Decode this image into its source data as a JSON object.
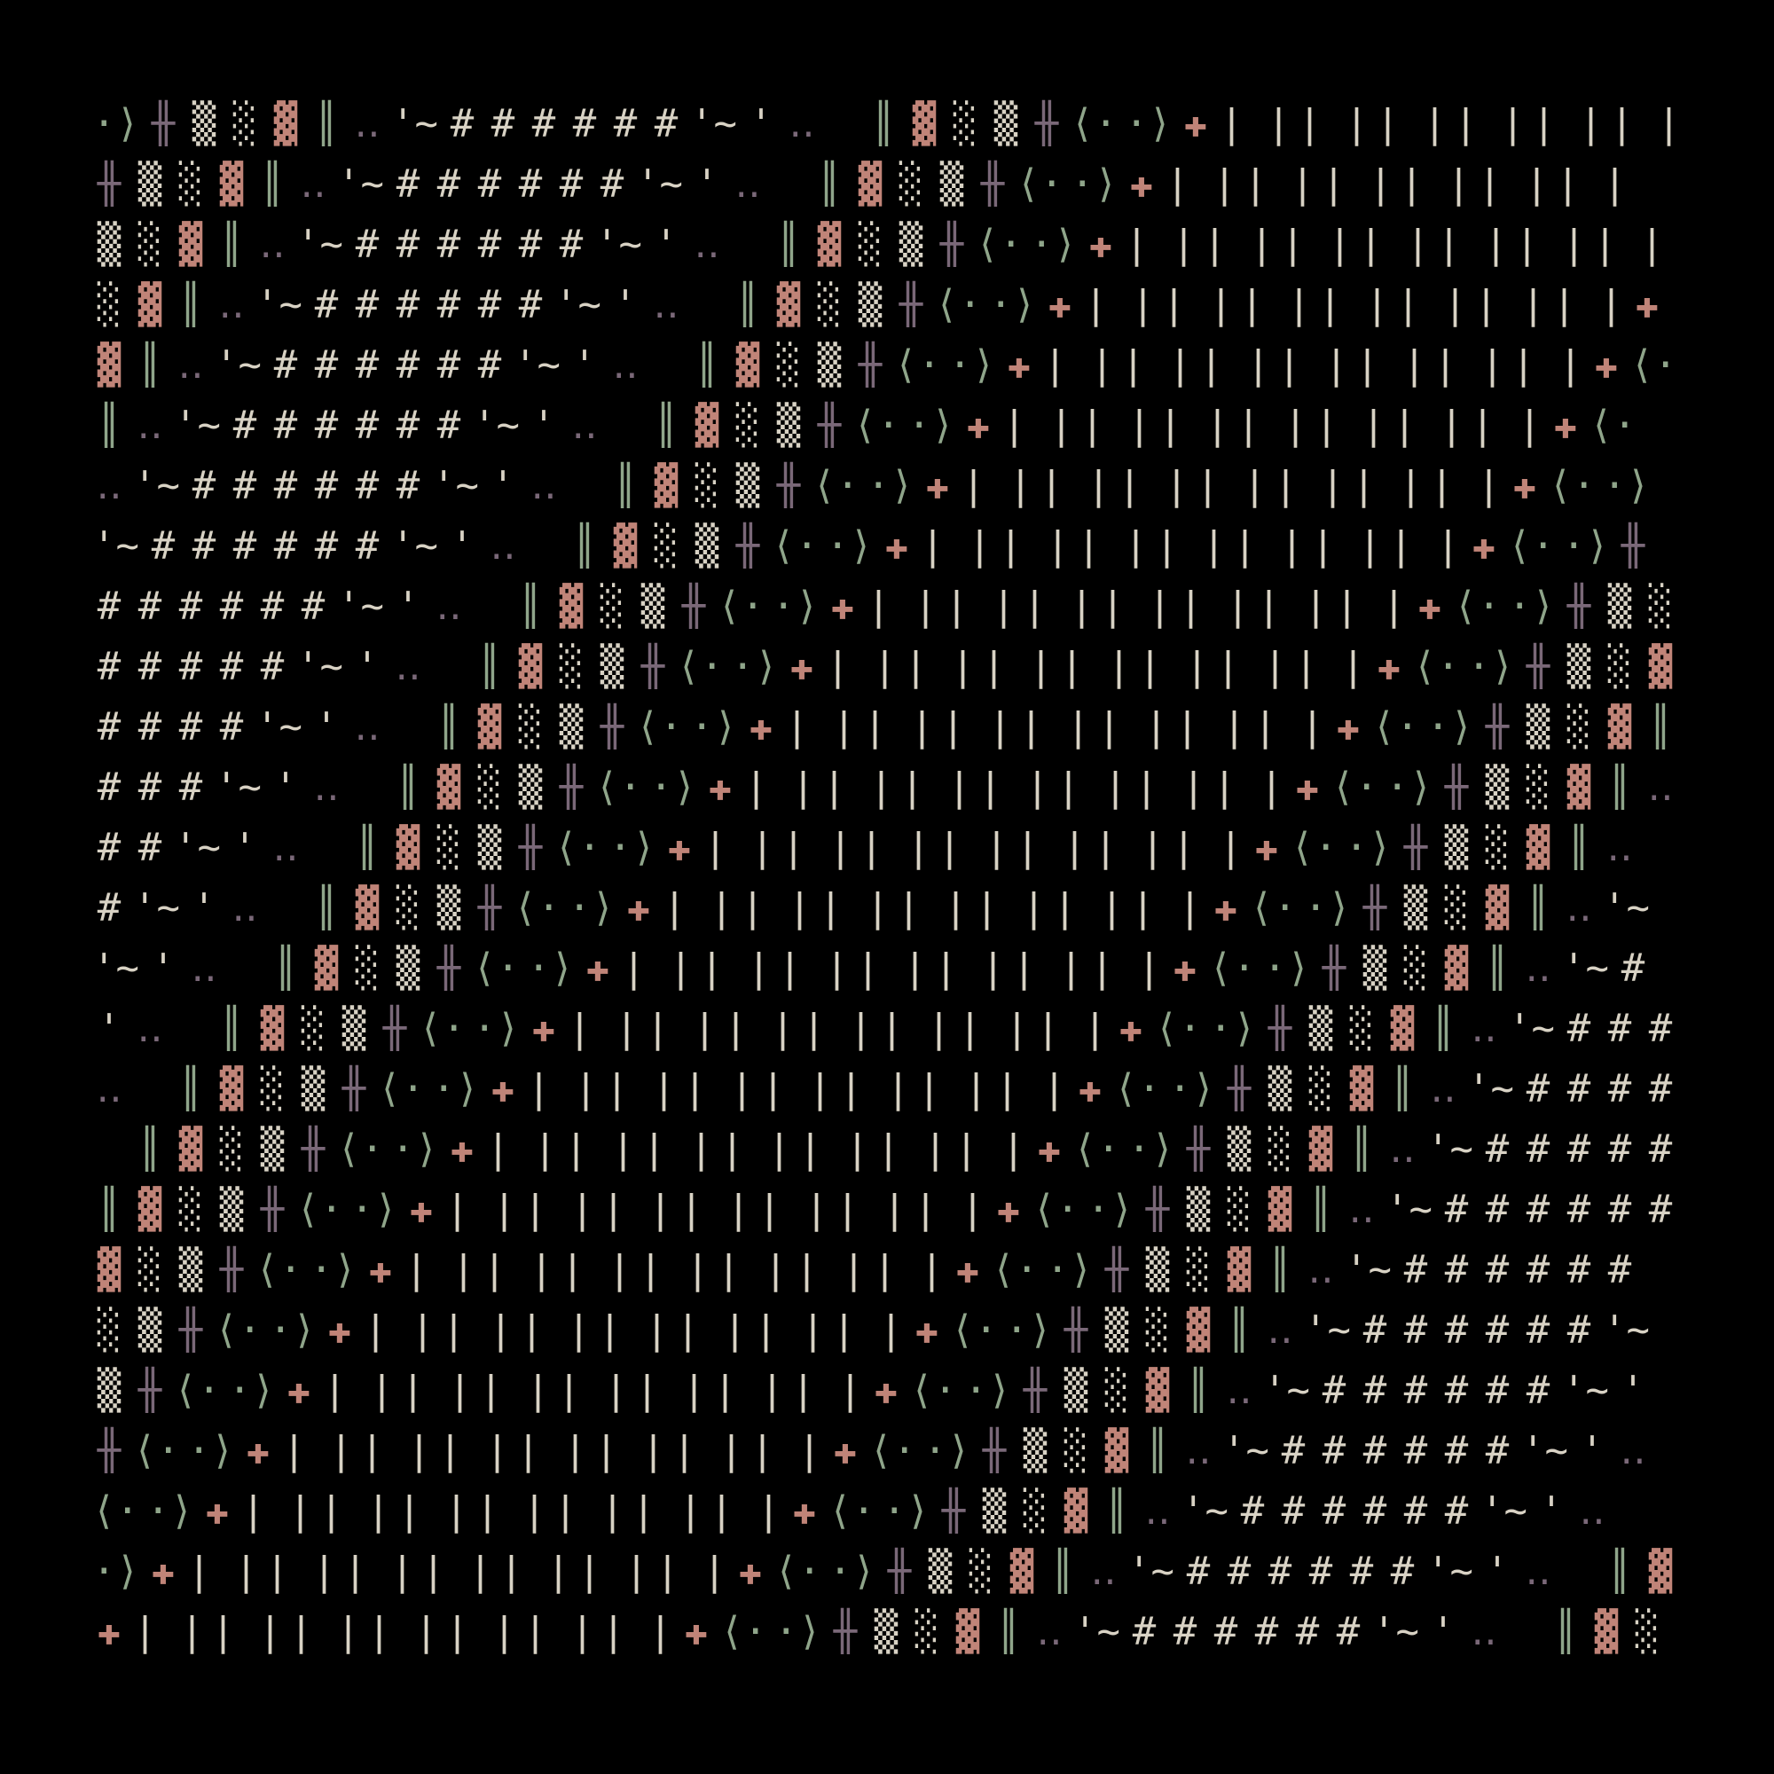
{
  "palette": {
    "background": "#000000",
    "cream": "#d8d2c4",
    "pink": "#c08478",
    "green": "#8fa58a",
    "purple": "#7a6878"
  },
  "pattern": [
    {
      "g": "╫",
      "c": "purple"
    },
    {
      "g": "▒",
      "c": "cream"
    },
    {
      "g": "░",
      "c": "cream"
    },
    {
      "g": "▓",
      "c": "pink"
    },
    {
      "g": "║",
      "c": "green"
    },
    {
      "g": "‥",
      "c": "purple"
    },
    {
      "g": "'~",
      "c": "cream"
    },
    {
      "g": "#",
      "c": "cream"
    },
    {
      "g": "#",
      "c": "cream"
    },
    {
      "g": "#",
      "c": "cream"
    },
    {
      "g": "#",
      "c": "cream"
    },
    {
      "g": "#",
      "c": "cream"
    },
    {
      "g": "#",
      "c": "cream"
    },
    {
      "g": "'~",
      "c": "cream"
    },
    {
      "g": "'",
      "c": "cream"
    },
    {
      "g": "‥",
      "c": "purple"
    },
    {
      "g": " ",
      "c": "cream"
    },
    {
      "g": "║",
      "c": "green"
    },
    {
      "g": "▓",
      "c": "pink"
    },
    {
      "g": "░",
      "c": "cream"
    },
    {
      "g": "▒",
      "c": "cream"
    },
    {
      "g": "╫",
      "c": "purple"
    },
    {
      "g": "⟨·",
      "c": "green"
    },
    {
      "g": "·⟩",
      "c": "green"
    },
    {
      "g": "✚",
      "c": "pink"
    },
    {
      "g": "| |",
      "c": "cream"
    },
    {
      "g": "| |",
      "c": "cream"
    },
    {
      "g": "| |",
      "c": "cream"
    },
    {
      "g": "| |",
      "c": "cream"
    },
    {
      "g": "| |",
      "c": "cream"
    },
    {
      "g": "| |",
      "c": "cream"
    },
    {
      "g": "| |",
      "c": "cream"
    },
    {
      "g": "✚",
      "c": "pink"
    },
    {
      "g": "⟨·",
      "c": "green"
    },
    {
      "g": "·⟩",
      "c": "green"
    }
  ]
}
